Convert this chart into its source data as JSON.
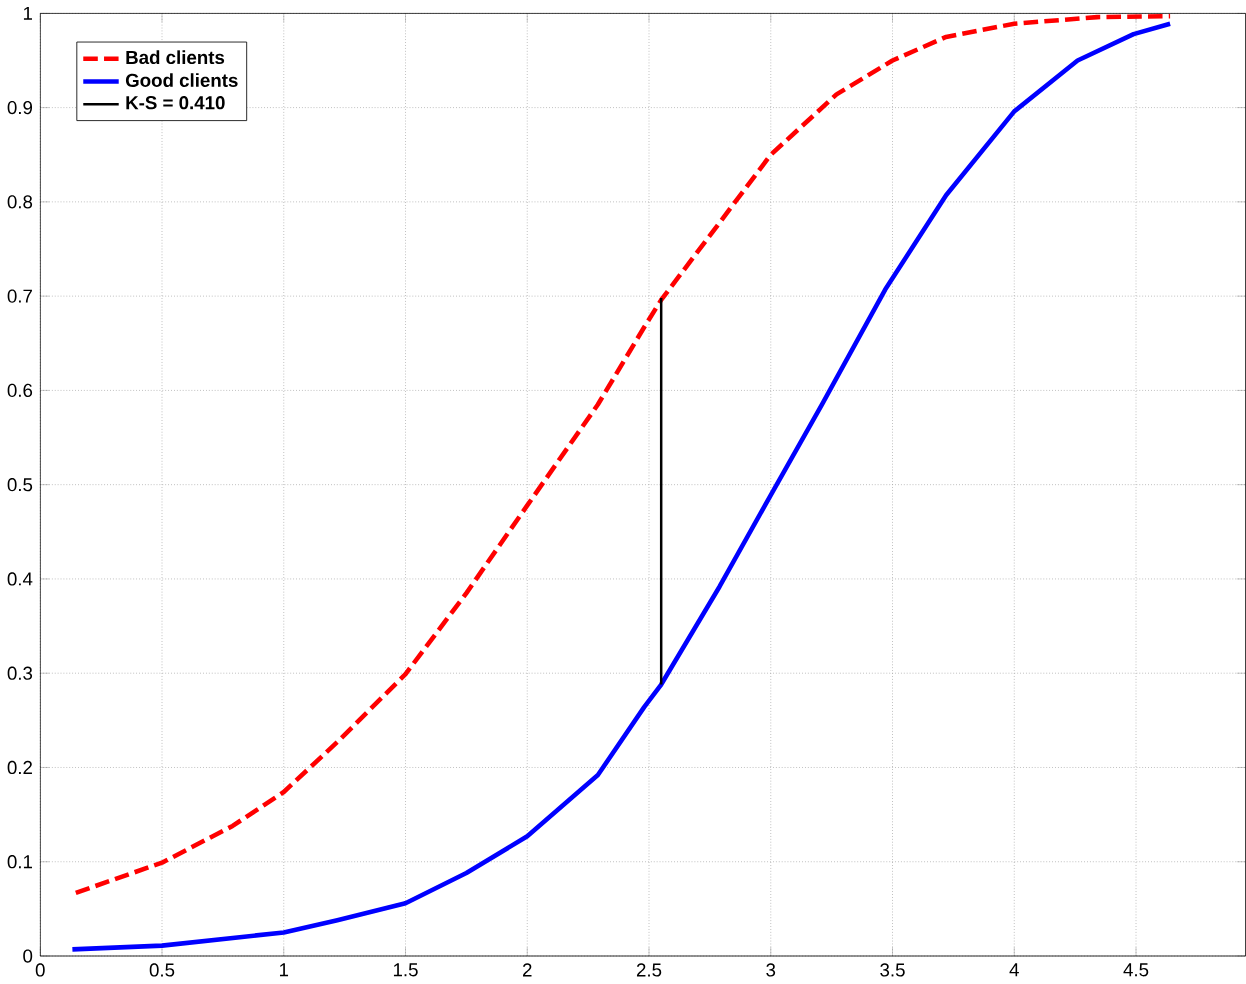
{
  "chart_data": {
    "type": "line",
    "xlim": [
      0,
      4.95
    ],
    "ylim": [
      0,
      1
    ],
    "xticks": [
      0,
      0.5,
      1,
      1.5,
      2,
      2.5,
      3,
      3.5,
      4,
      4.5
    ],
    "yticks": [
      0,
      0.1,
      0.2,
      0.3,
      0.4,
      0.5,
      0.6,
      0.7,
      0.8,
      0.9,
      1
    ],
    "grid": true,
    "legend": "top left",
    "marker": "none",
    "series": [
      {
        "name": "Bad clients",
        "color": "#ff0000",
        "line_style": "dashed",
        "x": [
          0.146,
          0.5,
          0.79,
          1.0,
          1.22,
          1.5,
          1.75,
          2.0,
          2.29,
          2.48,
          2.55,
          2.79,
          3.0,
          3.27,
          3.5,
          3.72,
          4.0,
          4.34,
          4.64
        ],
        "values": [
          0.067,
          0.099,
          0.138,
          0.174,
          0.227,
          0.299,
          0.385,
          0.478,
          0.585,
          0.667,
          0.696,
          0.778,
          0.85,
          0.914,
          0.95,
          0.975,
          0.989,
          0.996,
          0.997
        ]
      },
      {
        "name": "Good clients",
        "color": "#0000ff",
        "line_style": "solid",
        "x": [
          0.132,
          0.5,
          1.0,
          1.22,
          1.5,
          1.75,
          2.0,
          2.29,
          2.48,
          2.55,
          2.79,
          3.0,
          3.21,
          3.47,
          3.72,
          4.0,
          4.26,
          4.49,
          4.64
        ],
        "values": [
          0.007,
          0.011,
          0.025,
          0.038,
          0.056,
          0.088,
          0.127,
          0.192,
          0.264,
          0.288,
          0.392,
          0.489,
          0.585,
          0.707,
          0.807,
          0.896,
          0.95,
          0.978,
          0.989
        ]
      },
      {
        "name": "K-S = 0.410",
        "color": "#000000",
        "line_style": "solid",
        "x": [
          2.55,
          2.55
        ],
        "values": [
          0.288,
          0.698
        ]
      }
    ]
  }
}
